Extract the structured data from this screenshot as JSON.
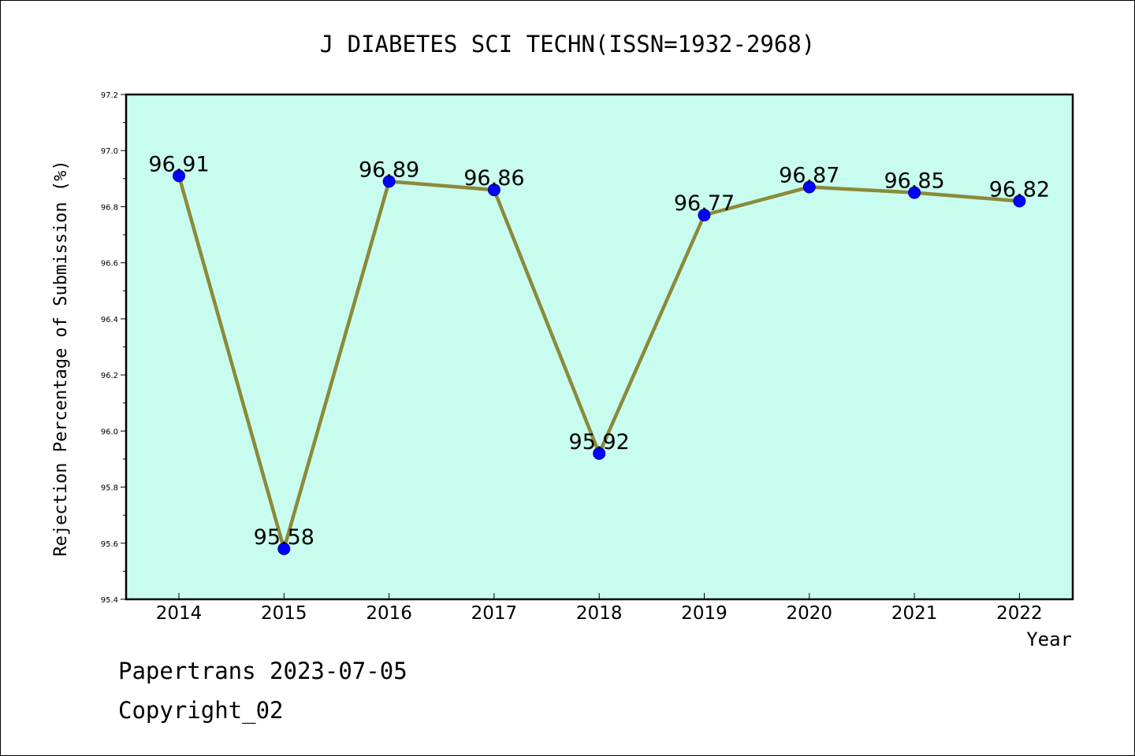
{
  "chart_data": {
    "type": "line",
    "title": "J DIABETES SCI TECHN(ISSN=1932-2968)",
    "xlabel": "Year",
    "ylabel": "Rejection Percentage of Submission (%)",
    "categories": [
      "2014",
      "2015",
      "2016",
      "2017",
      "2018",
      "2019",
      "2020",
      "2021",
      "2022"
    ],
    "series": [
      {
        "values": [
          96.91,
          95.58,
          96.89,
          96.86,
          95.92,
          96.77,
          96.87,
          96.85,
          96.82
        ],
        "labels": [
          "96.91",
          "95.58",
          "96.89",
          "96.86",
          "95.92",
          "96.77",
          "96.87",
          "96.85",
          "96.82"
        ]
      }
    ],
    "ylim": [
      95.4,
      97.2
    ],
    "yticks": [
      "95.4",
      "95.6",
      "95.8",
      "96.0",
      "96.2",
      "96.4",
      "96.6",
      "96.8",
      "97.0",
      "97.2"
    ],
    "grid": false,
    "colors": {
      "plot_background": "#c8fcee",
      "line": "#8b8a3a",
      "marker": "#0000ff"
    }
  },
  "footer": {
    "line1": "Papertrans 2023-07-05",
    "line2": "Copyright_02"
  }
}
